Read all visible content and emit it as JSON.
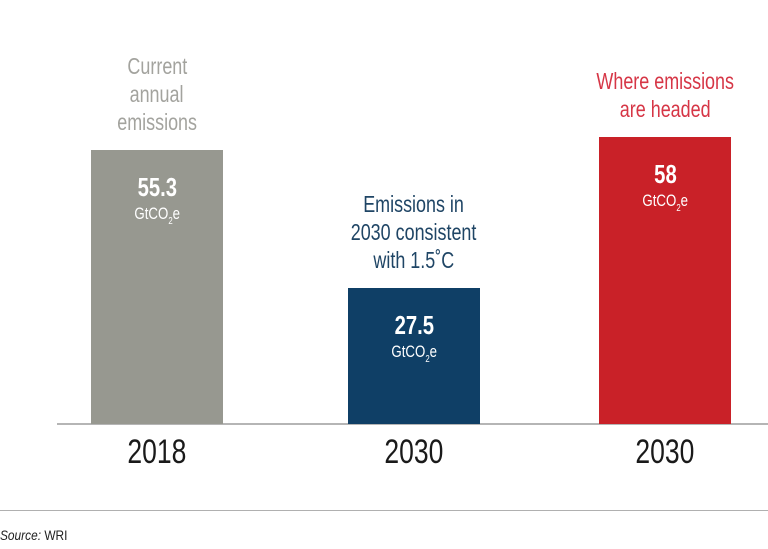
{
  "chart_data": {
    "type": "bar",
    "categories": [
      "2018",
      "2030",
      "2030"
    ],
    "values": [
      55.3,
      27.5,
      58
    ],
    "value_labels": [
      "55.3",
      "27.5",
      "58"
    ],
    "unit": {
      "prefix": "GtCO",
      "subscript": "2",
      "suffix": "e"
    },
    "annotations": [
      [
        "Current",
        "annual",
        "emissions"
      ],
      [
        "Emissions in",
        "2030 consistent",
        "with 1.5˚C"
      ],
      [
        "Where emissions",
        "are headed"
      ]
    ],
    "colors": [
      "#979890",
      "#0f3f66",
      "#c92128"
    ],
    "annotation_colors": [
      "#a3a39e",
      "#1f4565",
      "#d63646"
    ],
    "ylim": [
      0,
      60
    ],
    "grid": false,
    "legend": "none"
  },
  "source": {
    "label": "Source:",
    "value": "WRI"
  }
}
